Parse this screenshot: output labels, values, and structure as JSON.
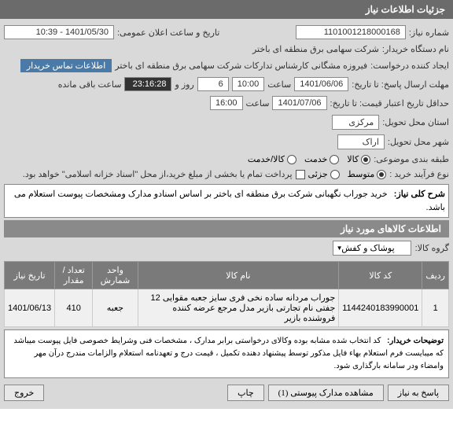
{
  "header": {
    "title": "جزئیات اطلاعات نیاز"
  },
  "need_number": {
    "label": "شماره نیاز:",
    "value": "1101001218000168"
  },
  "announce": {
    "label": "تاریخ و ساعت اعلان عمومی:",
    "value": "1401/05/30 - 10:39"
  },
  "buyer": {
    "label": "نام دستگاه خریدار:",
    "value": "شرکت سهامی برق منطقه ای باختر"
  },
  "requester": {
    "label": "ایجاد کننده درخواست:",
    "value": "فیروزه مشگانی کارشناس تدارکات شرکت سهامی برق منطقه ای باختر"
  },
  "contact_btn": "اطلاعات تماس خریدار",
  "deadline": {
    "label": "مهلت ارسال پاسخ: تا تاریخ:",
    "date": "1401/06/06",
    "time_label": "ساعت",
    "time": "10:00",
    "days_label": "روز و",
    "days": "6",
    "remain_label": "ساعت باقی مانده",
    "remain": "23:16:28"
  },
  "validity": {
    "label": "حداقل تاریخ اعتبار قیمت: تا تاریخ:",
    "date": "1401/07/06",
    "time_label": "ساعت",
    "time": "16:00"
  },
  "province": {
    "label": "استان محل تحویل:",
    "value": "مرکزی"
  },
  "city": {
    "label": "شهر محل تحویل:",
    "value": "اراک"
  },
  "category": {
    "label": "طبقه بندی موضوعی:",
    "options": [
      "کالا",
      "خدمت",
      "کالا/خدمت"
    ],
    "selected": 0
  },
  "process": {
    "label": "نوع فرآیند خرید :",
    "options": [
      "متوسط",
      "جزئی"
    ],
    "selected": 0,
    "note": "پرداخت تمام یا بخشی از مبلغ خرید،از محل \"اسناد خزانه اسلامی\" خواهد بود.",
    "checkbox": false
  },
  "description": {
    "label": "شرح کلی نیاز:",
    "text": "خرید جوراب نگهبانی شرکت برق منطقه ای باختر بر اساس اسنادو مدارک ومشخصات پیوست استعلام می باشد."
  },
  "goods_section": "اطلاعات کالاهای مورد نیاز",
  "goods_group": {
    "label": "گروه کالا:",
    "value": "پوشاک و کفش"
  },
  "table": {
    "headers": [
      "ردیف",
      "کد کالا",
      "نام کالا",
      "واحد شمارش",
      "تعداد / مقدار",
      "تاریخ نیاز"
    ],
    "rows": [
      [
        "1",
        "1144240183990001",
        "جوراب مردانه ساده نخی فری سایز جعبه مقوایی 12 جفتی نام تجارتی بازیر مدل مرجع عرضه کننده فروشنده بازیر",
        "جعبه",
        "410",
        "1401/06/13"
      ]
    ]
  },
  "buyer_notes": {
    "label": "توضیحات خریدار:",
    "text": "کد انتخاب شده مشابه بوده وکالای درخواستی برابر مدارک ، مشخصات فنی وشرایط خصوصی فایل پیوست میباشد که میبایست فرم استعلام بهاء فایل مذکور توسط پیشنهاد دهنده تکمیل ، قیمت درج و تعهدنامه استعلام والزامات مندرج درآن مهر وامضاء ودر سامانه بارگذاری شود."
  },
  "buttons": {
    "respond": "پاسخ به نیاز",
    "attachments": "مشاهده مدارک پیوستی (1)",
    "print": "چاپ",
    "exit": "خروج"
  }
}
